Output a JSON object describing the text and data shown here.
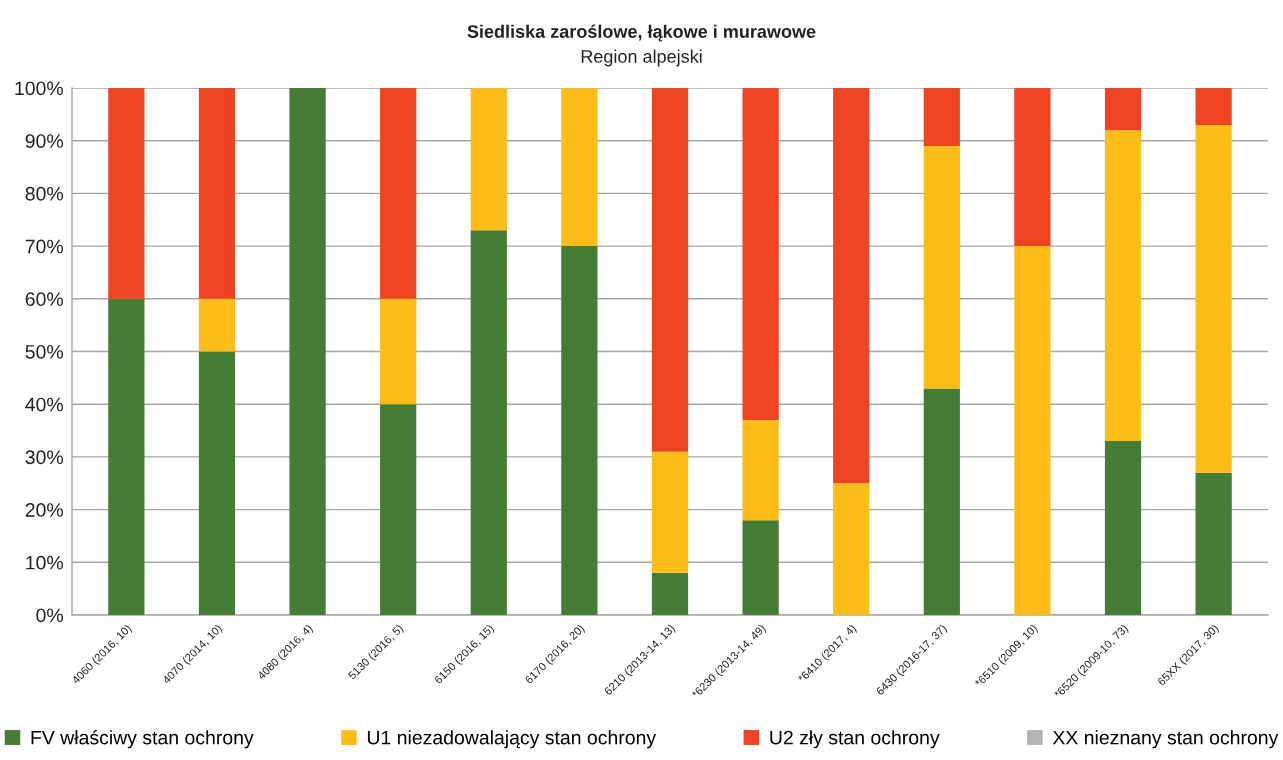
{
  "chart_data": {
    "type": "bar",
    "title": "Siedliska zaroślowe, łąkowe i murawowe",
    "subtitle": "Region alpejski",
    "categories": [
      "4060 (2016, 10)",
      "4070 (2014, 10)",
      "4080 (2016, 4)",
      "5130 (2016, 5)",
      "6150 (2016, 15)",
      "6170 (2016, 20)",
      "6210 (2013-14, 13)",
      "*6230 (2013-14, 49)",
      "*6410 (2017, 4)",
      "6430 (2016-17, 37)",
      "*6510 (2009, 10)",
      "*6520 (2009-10, 73)",
      "65XX (2017, 30)"
    ],
    "series": [
      {
        "name": "FV właściwy stan ochrony",
        "color": "#467c35",
        "values": [
          60,
          50,
          100,
          40,
          73,
          70,
          8,
          18,
          0,
          43,
          0,
          33,
          27
        ]
      },
      {
        "name": "U1 niezadowalający stan ochrony",
        "color": "#fdbc17",
        "values": [
          0,
          10,
          0,
          20,
          27,
          30,
          23,
          19,
          25,
          46,
          70,
          59,
          66
        ]
      },
      {
        "name": "U2 zły stan ochrony",
        "color": "#ef4423",
        "values": [
          40,
          40,
          0,
          40,
          0,
          0,
          69,
          63,
          75,
          11,
          30,
          8,
          7
        ]
      },
      {
        "name": "XX nieznany stan ochrony",
        "color": "#b3b3b3",
        "values": [
          0,
          0,
          0,
          0,
          0,
          0,
          0,
          0,
          0,
          0,
          0,
          0,
          0
        ]
      }
    ],
    "stacked": true,
    "ylim": [
      0,
      100
    ],
    "yticks": [
      {
        "value": 0,
        "label": "0%"
      },
      {
        "value": 10,
        "label": "10%"
      },
      {
        "value": 20,
        "label": "20%"
      },
      {
        "value": 30,
        "label": "30%"
      },
      {
        "value": 40,
        "label": "40%"
      },
      {
        "value": 50,
        "label": "50%"
      },
      {
        "value": 60,
        "label": "60%"
      },
      {
        "value": 70,
        "label": "70%"
      },
      {
        "value": 80,
        "label": "80%"
      },
      {
        "value": 90,
        "label": "90%"
      },
      {
        "value": 100,
        "label": "100%"
      }
    ],
    "grid": "y",
    "legend": "bottom"
  }
}
